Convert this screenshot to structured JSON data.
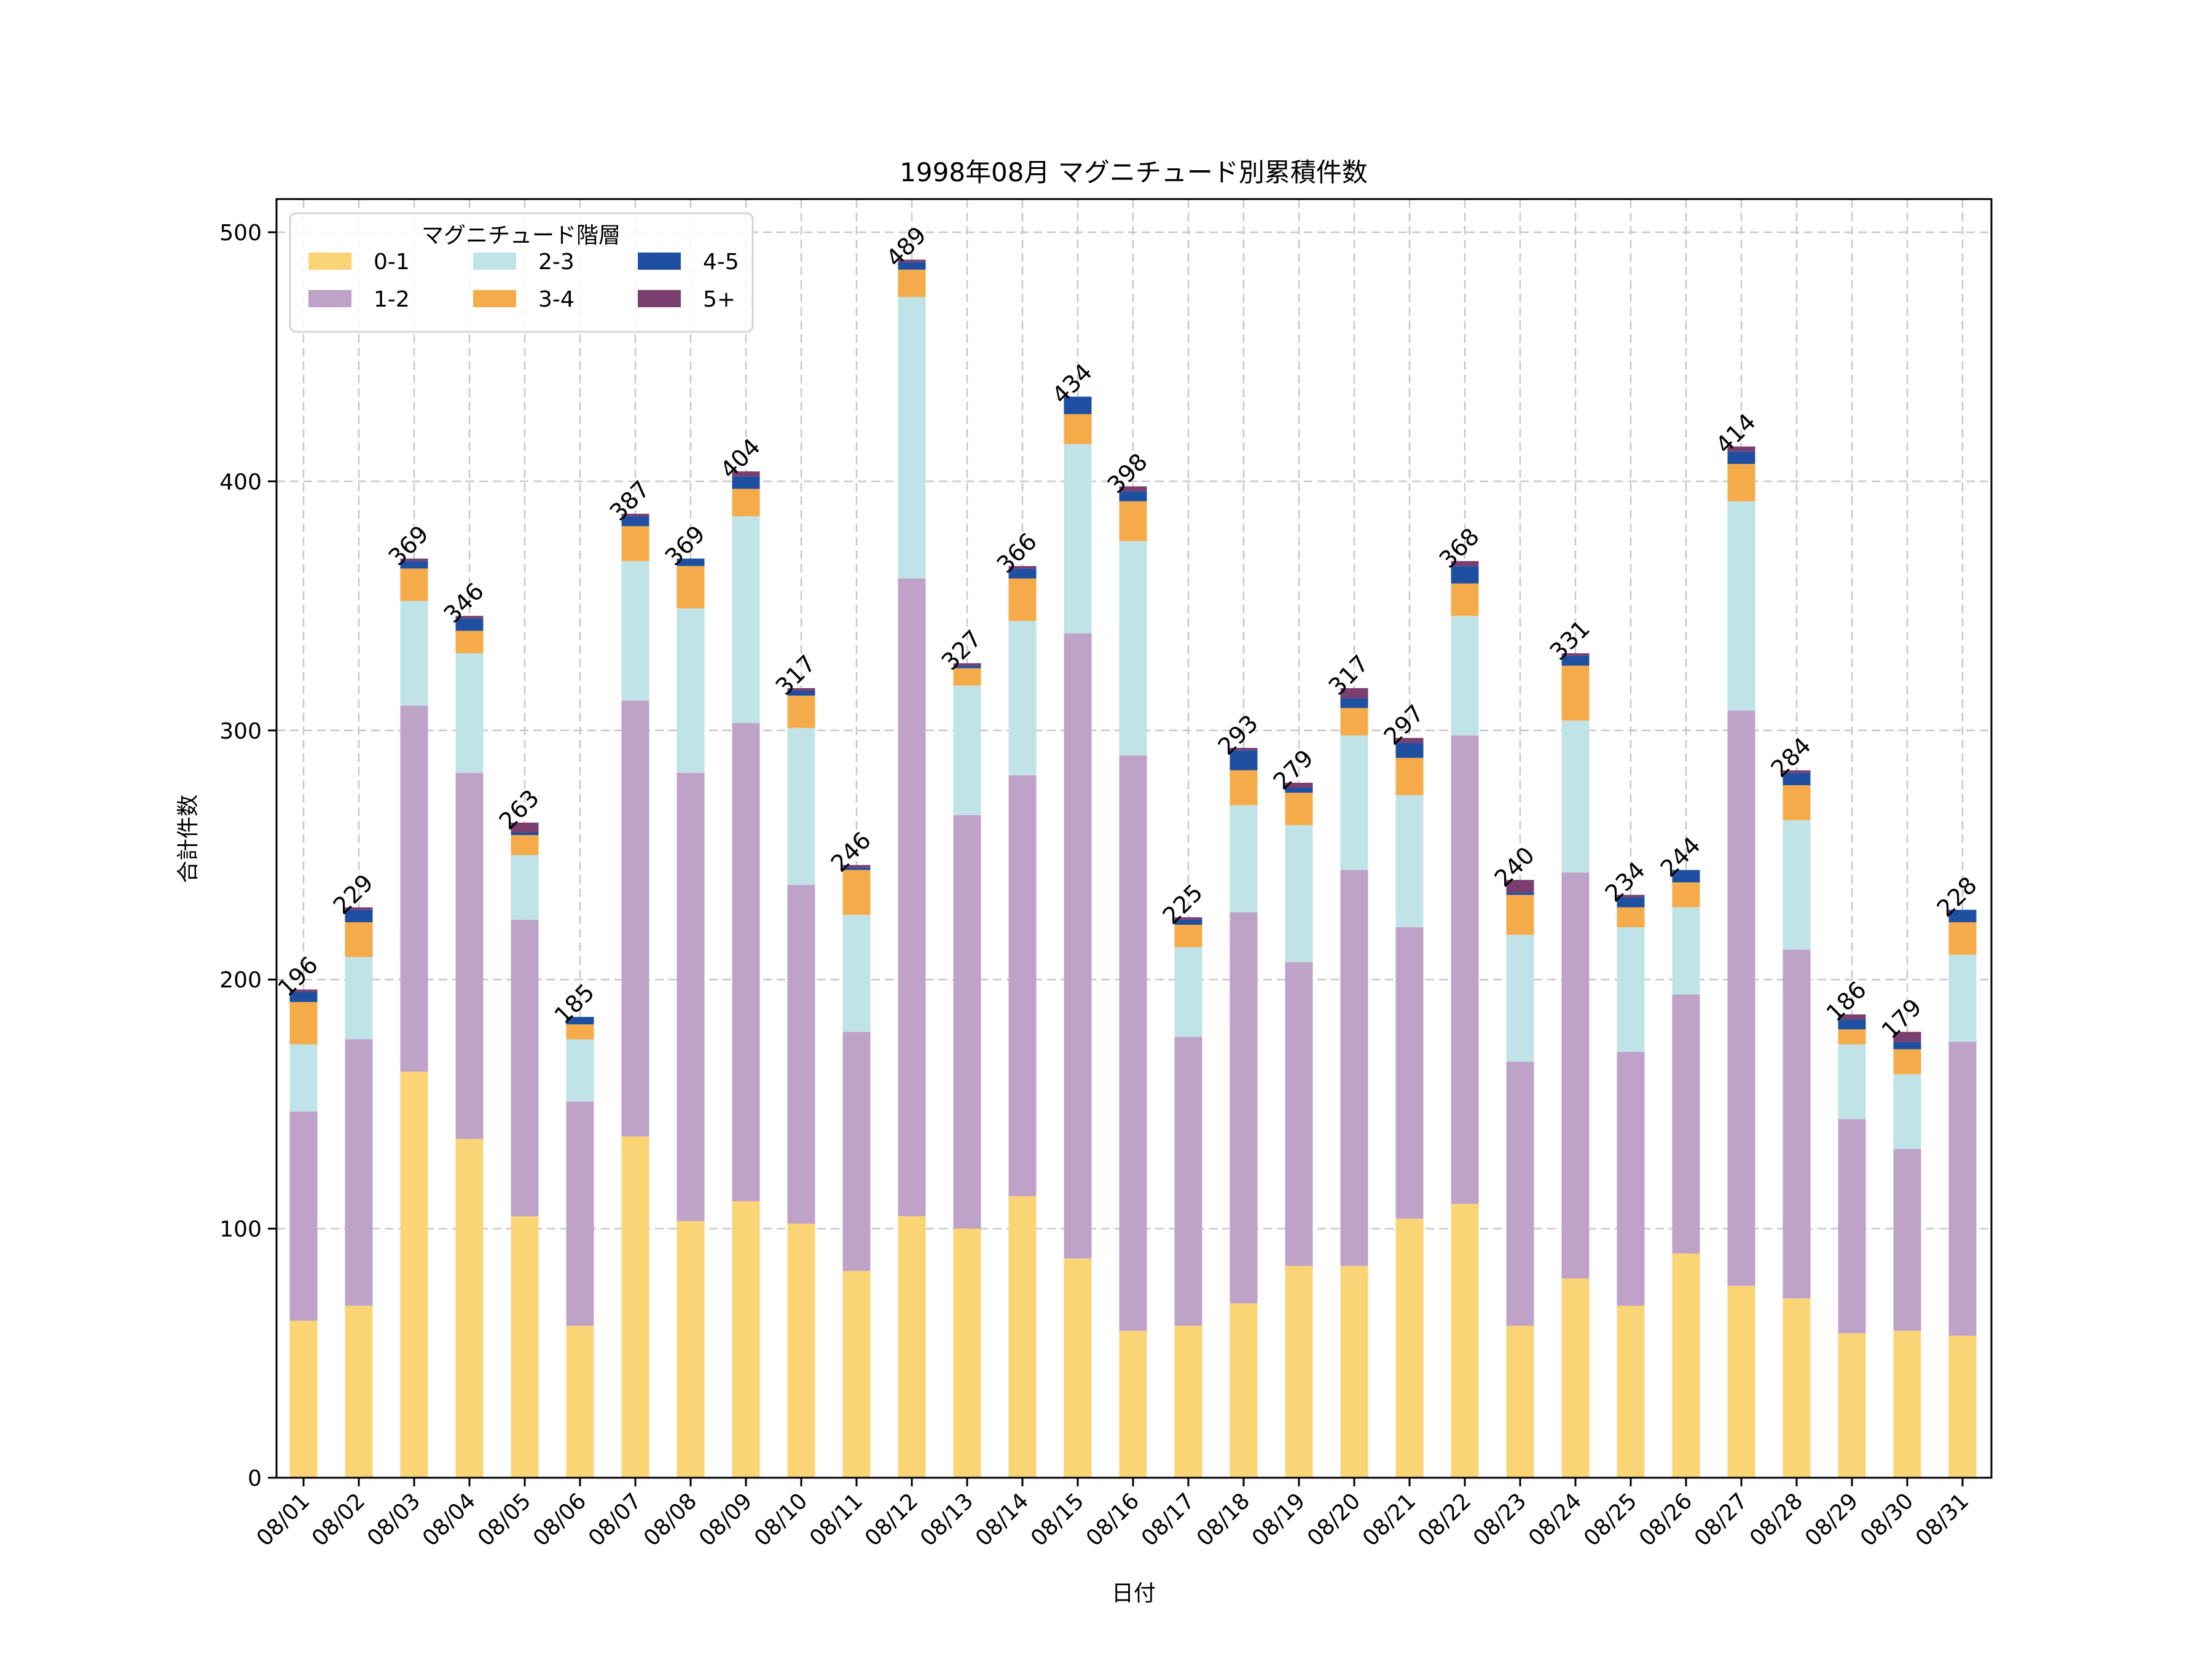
{
  "chart_data": {
    "type": "bar",
    "stacked": true,
    "title": "1998年08月 マグニチュード別累積件数",
    "xlabel": "日付",
    "ylabel": "合計件数",
    "ylim": [
      0,
      510
    ],
    "yticks": [
      0,
      100,
      200,
      300,
      400,
      500
    ],
    "grid": true,
    "legend": {
      "title": "マグニチュード階層",
      "placement": "top-left",
      "columns": 3
    },
    "categories": [
      "08/01",
      "08/02",
      "08/03",
      "08/04",
      "08/05",
      "08/06",
      "08/07",
      "08/08",
      "08/09",
      "08/10",
      "08/11",
      "08/12",
      "08/13",
      "08/14",
      "08/15",
      "08/16",
      "08/17",
      "08/18",
      "08/19",
      "08/20",
      "08/21",
      "08/22",
      "08/23",
      "08/24",
      "08/25",
      "08/26",
      "08/27",
      "08/28",
      "08/29",
      "08/30",
      "08/31"
    ],
    "series": [
      {
        "name": "0-1",
        "color": "#fbd575",
        "values": [
          63,
          69,
          163,
          136,
          105,
          61,
          137,
          103,
          111,
          102,
          83,
          105,
          100,
          113,
          88,
          59,
          61,
          70,
          85,
          85,
          104,
          110,
          61,
          80,
          69,
          90,
          77,
          72,
          58,
          59,
          57
        ]
      },
      {
        "name": "1-2",
        "color": "#bfa2c7",
        "values": [
          84,
          107,
          147,
          147,
          119,
          90,
          175,
          180,
          192,
          136,
          96,
          256,
          166,
          169,
          251,
          231,
          116,
          157,
          122,
          159,
          117,
          188,
          106,
          163,
          102,
          104,
          231,
          140,
          86,
          73,
          118
        ]
      },
      {
        "name": "2-3",
        "color": "#c0e3e7",
        "values": [
          27,
          33,
          42,
          48,
          26,
          25,
          56,
          66,
          83,
          63,
          47,
          113,
          52,
          62,
          76,
          86,
          36,
          43,
          55,
          54,
          53,
          48,
          51,
          61,
          50,
          35,
          84,
          52,
          30,
          30,
          35
        ]
      },
      {
        "name": "3-4",
        "color": "#f5ab4a",
        "values": [
          17,
          14,
          13,
          9,
          8,
          6,
          14,
          17,
          11,
          13,
          18,
          11,
          7,
          17,
          12,
          16,
          9,
          14,
          13,
          11,
          15,
          13,
          16,
          22,
          8,
          10,
          15,
          14,
          6,
          10,
          13
        ]
      },
      {
        "name": "4-5",
        "color": "#1f4fa1",
        "values": [
          4,
          5,
          3,
          5,
          1,
          3,
          4,
          3,
          5,
          2,
          1,
          3,
          1,
          4,
          7,
          4,
          2,
          8,
          2,
          4,
          6,
          7,
          1,
          4,
          4,
          5,
          5,
          5,
          4,
          3,
          5
        ]
      },
      {
        "name": "5+",
        "color": "#7a3f6f",
        "values": [
          1,
          1,
          1,
          1,
          4,
          0,
          1,
          0,
          2,
          1,
          1,
          1,
          1,
          1,
          0,
          2,
          1,
          1,
          2,
          4,
          2,
          2,
          5,
          1,
          1,
          0,
          2,
          1,
          2,
          4,
          0
        ]
      }
    ],
    "totals": [
      196,
      229,
      369,
      346,
      263,
      185,
      387,
      369,
      404,
      317,
      246,
      489,
      327,
      366,
      434,
      398,
      225,
      293,
      279,
      317,
      297,
      368,
      240,
      331,
      234,
      244,
      414,
      284,
      186,
      179,
      228
    ]
  }
}
